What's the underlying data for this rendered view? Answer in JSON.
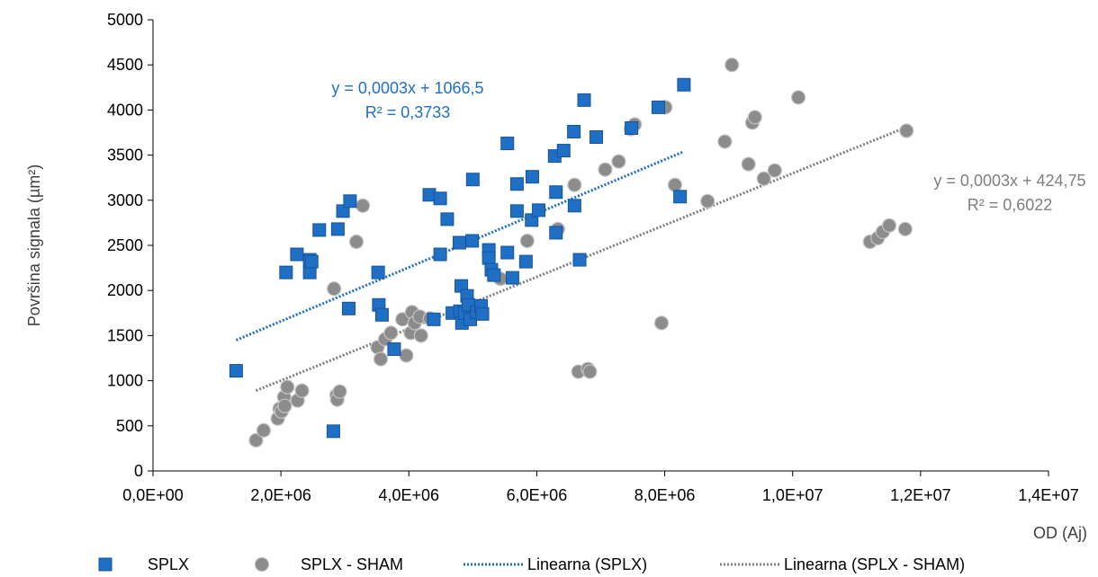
{
  "chart_data": {
    "type": "scatter",
    "title": "",
    "xlabel": "OD (Aj)",
    "ylabel": "Površina signala (µm²)",
    "xlim": [
      0,
      14000000
    ],
    "ylim": [
      0,
      5000
    ],
    "x_ticks": [
      0,
      2000000,
      4000000,
      6000000,
      8000000,
      10000000,
      12000000,
      14000000
    ],
    "x_tick_labels": [
      "0,0E+00",
      "2,0E+06",
      "4,0E+06",
      "6,0E+06",
      "8,0E+06",
      "1,0E+07",
      "1,2E+07",
      "1,4E+07"
    ],
    "y_ticks": [
      0,
      500,
      1000,
      1500,
      2000,
      2500,
      3000,
      3500,
      4000,
      4500,
      5000
    ],
    "y_tick_labels": [
      "0",
      "500",
      "1000",
      "1500",
      "2000",
      "2500",
      "3000",
      "3500",
      "4000",
      "4500",
      "5000"
    ],
    "grid": false,
    "legend_position": "bottom",
    "series": [
      {
        "name": "SPLX",
        "marker": "square",
        "color": "#1f6fc5",
        "points": [
          [
            1300000,
            1110
          ],
          [
            2080000,
            2200
          ],
          [
            2250000,
            2400
          ],
          [
            2450000,
            2200
          ],
          [
            2450000,
            2340
          ],
          [
            2480000,
            2320
          ],
          [
            2600000,
            2670
          ],
          [
            2820000,
            440
          ],
          [
            2890000,
            2680
          ],
          [
            2970000,
            2880
          ],
          [
            3060000,
            1800
          ],
          [
            3080000,
            2990
          ],
          [
            3520000,
            2200
          ],
          [
            3530000,
            1840
          ],
          [
            3580000,
            1730
          ],
          [
            3770000,
            1350
          ],
          [
            4320000,
            3060
          ],
          [
            4390000,
            1680
          ],
          [
            4490000,
            3020
          ],
          [
            4490000,
            2400
          ],
          [
            4600000,
            2790
          ],
          [
            4680000,
            1750
          ],
          [
            4800000,
            1770
          ],
          [
            4790000,
            2530
          ],
          [
            4820000,
            2050
          ],
          [
            4830000,
            1640
          ],
          [
            4870000,
            1750
          ],
          [
            4910000,
            1940
          ],
          [
            4930000,
            1840
          ],
          [
            4960000,
            1680
          ],
          [
            4990000,
            2550
          ],
          [
            5000000,
            3230
          ],
          [
            5060000,
            1760
          ],
          [
            5130000,
            1830
          ],
          [
            5150000,
            1740
          ],
          [
            5250000,
            2450
          ],
          [
            5250000,
            2360
          ],
          [
            5290000,
            2230
          ],
          [
            5330000,
            2170
          ],
          [
            5540000,
            2420
          ],
          [
            5540000,
            3630
          ],
          [
            5620000,
            2140
          ],
          [
            5690000,
            2880
          ],
          [
            5690000,
            3180
          ],
          [
            5830000,
            2320
          ],
          [
            5920000,
            2780
          ],
          [
            5930000,
            3260
          ],
          [
            6030000,
            2890
          ],
          [
            6280000,
            3490
          ],
          [
            6300000,
            3090
          ],
          [
            6300000,
            2640
          ],
          [
            6420000,
            3550
          ],
          [
            6580000,
            3760
          ],
          [
            6590000,
            2940
          ],
          [
            6670000,
            2340
          ],
          [
            6740000,
            4110
          ],
          [
            6930000,
            3700
          ],
          [
            7480000,
            3800
          ],
          [
            7900000,
            4030
          ],
          [
            8240000,
            3040
          ],
          [
            8300000,
            4280
          ]
        ]
      },
      {
        "name": "SPLX - SHAM",
        "marker": "circle",
        "color": "#8c8c8c",
        "points": [
          [
            1610000,
            340
          ],
          [
            1730000,
            450
          ],
          [
            1950000,
            580
          ],
          [
            1980000,
            690
          ],
          [
            2010000,
            660
          ],
          [
            2050000,
            820
          ],
          [
            2060000,
            720
          ],
          [
            2100000,
            930
          ],
          [
            2260000,
            780
          ],
          [
            2330000,
            890
          ],
          [
            2830000,
            2020
          ],
          [
            2870000,
            840
          ],
          [
            2880000,
            790
          ],
          [
            2920000,
            880
          ],
          [
            3180000,
            2540
          ],
          [
            3280000,
            2940
          ],
          [
            3510000,
            1370
          ],
          [
            3560000,
            1240
          ],
          [
            3630000,
            1460
          ],
          [
            3720000,
            1530
          ],
          [
            3900000,
            1680
          ],
          [
            3960000,
            1280
          ],
          [
            4030000,
            1530
          ],
          [
            4050000,
            1760
          ],
          [
            4090000,
            1640
          ],
          [
            4170000,
            1710
          ],
          [
            4190000,
            1500
          ],
          [
            4330000,
            1690
          ],
          [
            5430000,
            2130
          ],
          [
            5850000,
            2550
          ],
          [
            6330000,
            2680
          ],
          [
            6590000,
            3170
          ],
          [
            6650000,
            1100
          ],
          [
            6800000,
            1130
          ],
          [
            6830000,
            1100
          ],
          [
            7070000,
            3340
          ],
          [
            7280000,
            3430
          ],
          [
            7470000,
            3790
          ],
          [
            7530000,
            3840
          ],
          [
            7950000,
            1640
          ],
          [
            8010000,
            4030
          ],
          [
            8160000,
            3170
          ],
          [
            8670000,
            2990
          ],
          [
            8940000,
            3650
          ],
          [
            9050000,
            4500
          ],
          [
            9310000,
            3400
          ],
          [
            9370000,
            3860
          ],
          [
            9410000,
            3920
          ],
          [
            9550000,
            3240
          ],
          [
            9720000,
            3330
          ],
          [
            10090000,
            4140
          ],
          [
            11210000,
            2540
          ],
          [
            11330000,
            2580
          ],
          [
            11410000,
            2650
          ],
          [
            11510000,
            2720
          ],
          [
            11760000,
            2680
          ],
          [
            11780000,
            3770
          ]
        ]
      }
    ],
    "trendlines": [
      {
        "name": "Linearna (SPLX)",
        "of_series": "SPLX",
        "color": "#1f6fc5",
        "x_range": [
          1300000,
          8300000
        ],
        "y_range": [
          1450,
          3540
        ],
        "equation": "y = 0,0003x + 1066,5",
        "r2": "R² = 0,3733"
      },
      {
        "name": "Linearna (SPLX - SHAM)",
        "of_series": "SPLX - SHAM",
        "color": "#7f7f7f",
        "x_range": [
          1610000,
          11780000
        ],
        "y_range": [
          890,
          3810
        ],
        "equation": "y = 0,0003x + 424,75",
        "r2": "R² = 0,6022"
      }
    ]
  }
}
